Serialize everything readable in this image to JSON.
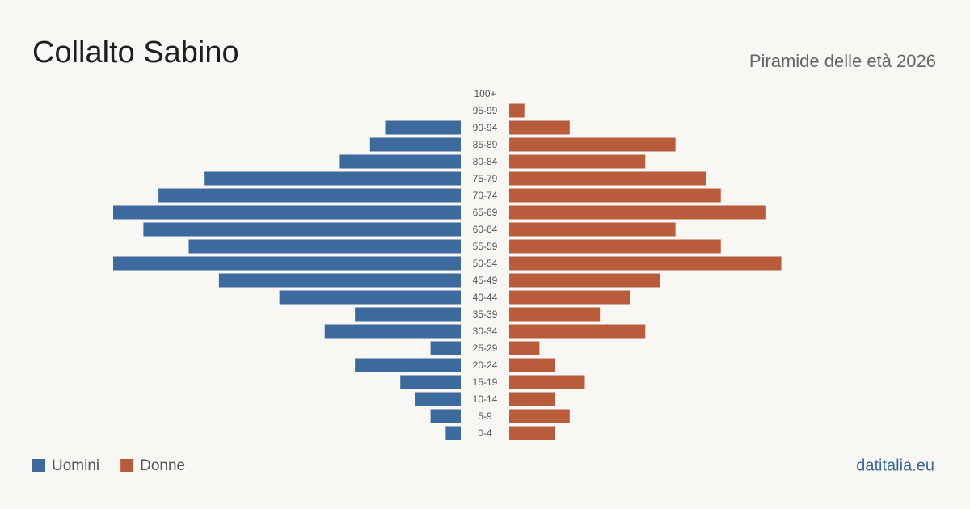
{
  "chart_data": {
    "type": "pyramid",
    "title": "Collalto Sabino",
    "subtitle": "Piramide delle età 2026",
    "source": "datitalia.eu",
    "categories": [
      "100+",
      "95-99",
      "90-94",
      "85-89",
      "80-84",
      "75-79",
      "70-74",
      "65-69",
      "60-64",
      "55-59",
      "50-54",
      "45-49",
      "40-44",
      "35-39",
      "30-34",
      "25-29",
      "20-24",
      "15-19",
      "10-14",
      "5-9",
      "0-4"
    ],
    "series": [
      {
        "name": "Uomini",
        "color": "#3d6a9c",
        "values": [
          0,
          0,
          5,
          6,
          8,
          17,
          20,
          23,
          21,
          18,
          23,
          16,
          12,
          7,
          9,
          2,
          7,
          4,
          3,
          2,
          1
        ]
      },
      {
        "name": "Donne",
        "color": "#b85c3c",
        "values": [
          0,
          1,
          4,
          11,
          9,
          13,
          14,
          17,
          11,
          14,
          18,
          10,
          8,
          6,
          9,
          2,
          3,
          5,
          3,
          4,
          3
        ]
      }
    ]
  }
}
